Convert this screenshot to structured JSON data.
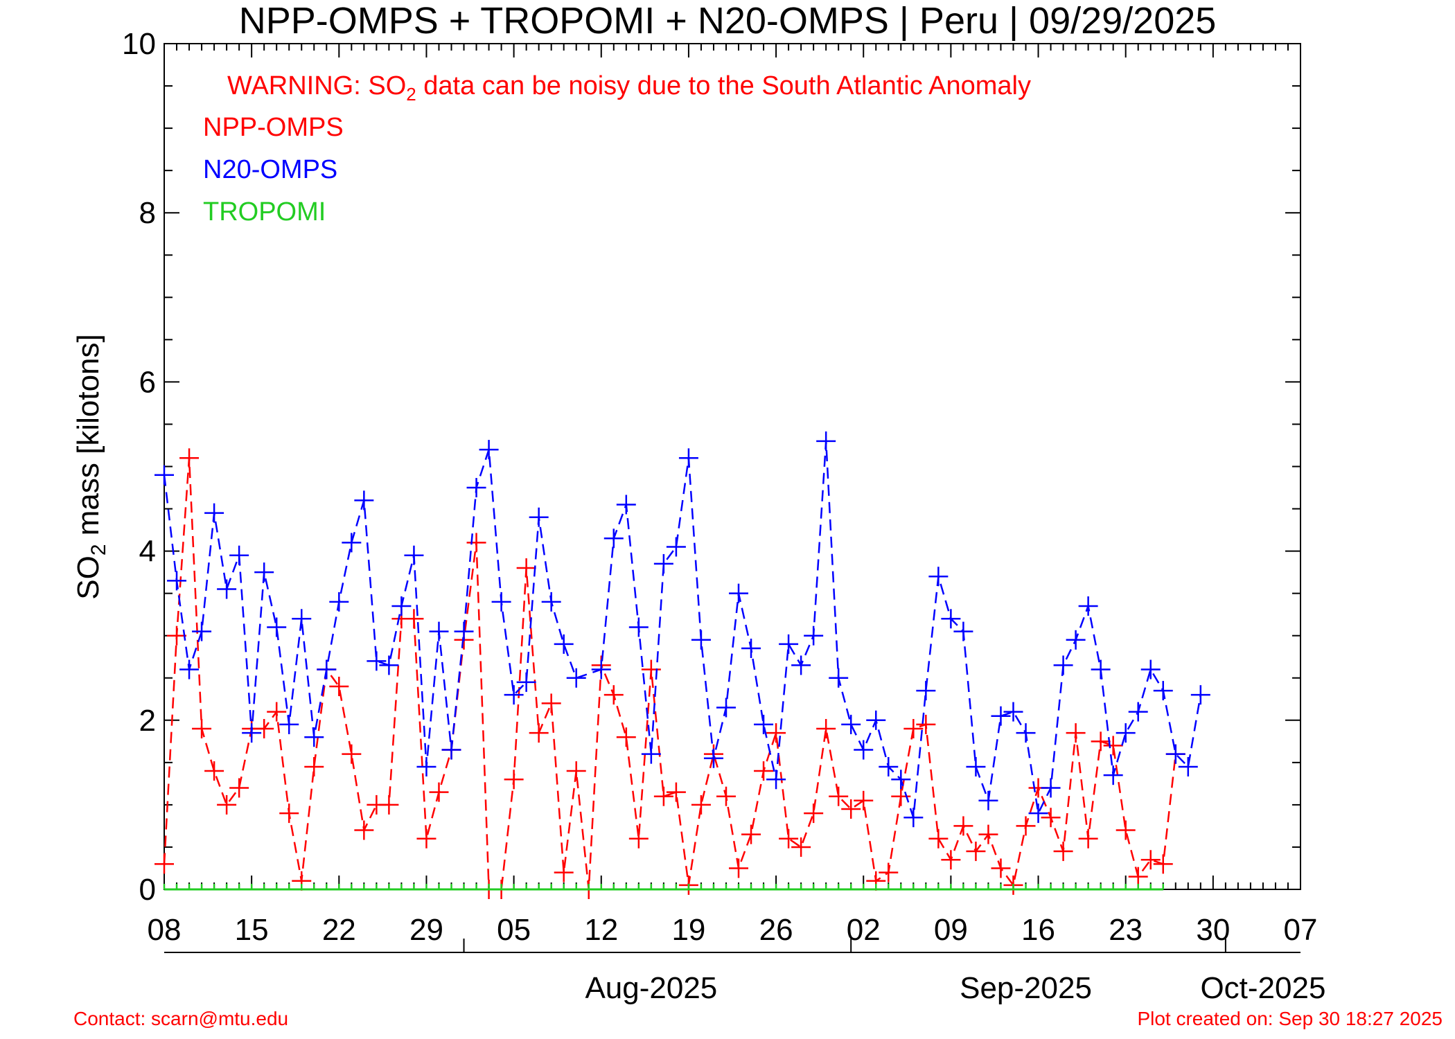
{
  "chart_data": {
    "type": "line",
    "title": "NPP-OMPS + TROPOMI + N20-OMPS | Peru | 09/29/2025",
    "warning": {
      "pre": "WARNING: SO",
      "sub": "2",
      "post": " data can be noisy due to the South Atlantic Anomaly"
    },
    "ylabel": {
      "pre": "SO",
      "sub": "2",
      "post": " mass [kilotons]"
    },
    "ylim": [
      0,
      10
    ],
    "yticks": [
      0,
      2,
      4,
      6,
      8,
      10
    ],
    "xrange": [
      "2025-07-08",
      "2025-10-07"
    ],
    "x_tick_labels": [
      "08",
      "15",
      "22",
      "29",
      "05",
      "12",
      "19",
      "26",
      "02",
      "09",
      "16",
      "23",
      "30",
      "07"
    ],
    "month_labels": [
      "Aug-2025",
      "Sep-2025",
      "Oct-2025"
    ],
    "series": [
      {
        "name": "NPP-OMPS",
        "color": "#ff0000",
        "start_date": "2025-07-08",
        "values": [
          0.3,
          3.0,
          5.1,
          1.9,
          1.4,
          1.0,
          1.2,
          1.9,
          1.9,
          2.1,
          0.9,
          0.1,
          1.45,
          2.6,
          2.4,
          1.6,
          0.7,
          1.0,
          1.0,
          3.2,
          3.2,
          0.6,
          1.15,
          1.65,
          2.95,
          4.1,
          0.0,
          0.0,
          1.3,
          3.8,
          1.85,
          2.2,
          0.2,
          1.4,
          0.0,
          2.65,
          2.3,
          1.8,
          0.6,
          2.6,
          1.1,
          1.15,
          0.05,
          1.0,
          1.6,
          1.1,
          0.25,
          0.65,
          1.4,
          1.85,
          0.6,
          0.5,
          0.9,
          1.9,
          1.1,
          0.95,
          1.05,
          0.1,
          0.2,
          1.1,
          1.9,
          1.95,
          0.6,
          0.35,
          0.75,
          0.45,
          0.65,
          0.25,
          0.05,
          0.75,
          1.2,
          0.85,
          0.45,
          1.85,
          0.6,
          1.75,
          1.7,
          0.7,
          0.15,
          0.35,
          0.3,
          1.6
        ]
      },
      {
        "name": "N20-OMPS",
        "color": "#0000ff",
        "start_date": "2025-07-08",
        "values": [
          4.9,
          3.65,
          2.6,
          3.05,
          4.45,
          3.55,
          3.95,
          1.85,
          3.75,
          3.1,
          1.95,
          3.2,
          1.8,
          2.6,
          3.4,
          4.1,
          4.6,
          2.7,
          2.65,
          3.35,
          3.95,
          1.45,
          3.05,
          1.65,
          3.05,
          4.75,
          5.2,
          3.4,
          2.3,
          2.45,
          4.4,
          3.4,
          2.9,
          2.5,
          null,
          2.6,
          4.15,
          4.55,
          3.1,
          1.6,
          3.85,
          4.05,
          5.1,
          2.95,
          1.55,
          2.15,
          3.5,
          2.85,
          1.95,
          1.3,
          2.9,
          2.65,
          3.0,
          5.3,
          2.5,
          1.95,
          1.65,
          2.0,
          1.45,
          1.3,
          0.85,
          2.35,
          3.7,
          3.2,
          3.05,
          1.45,
          1.05,
          2.05,
          2.1,
          1.85,
          0.9,
          1.2,
          2.65,
          2.95,
          3.35,
          2.6,
          1.35,
          1.85,
          2.1,
          2.6,
          2.35,
          1.6,
          1.45,
          2.3
        ]
      },
      {
        "name": "TROPOMI",
        "color": "#22cc22",
        "start_date": "2025-07-08",
        "values": [
          0,
          0,
          0,
          0,
          0,
          0,
          0,
          0,
          0,
          0,
          0,
          0,
          0,
          0,
          0,
          0,
          0,
          0,
          0,
          0,
          0,
          0,
          0,
          0,
          0,
          0,
          0,
          0,
          0,
          0,
          0,
          0,
          0,
          0,
          0,
          0,
          0,
          0,
          0,
          0,
          0,
          0,
          0,
          0,
          0,
          0,
          0,
          0,
          0,
          0,
          0,
          0,
          0,
          0,
          0,
          0,
          0,
          0,
          0,
          0,
          0,
          0,
          0,
          0,
          0,
          0,
          0,
          0,
          0,
          0,
          0,
          0,
          0,
          0,
          0,
          0,
          0,
          0,
          0,
          0,
          0
        ]
      }
    ],
    "grid": false,
    "legend_placement": "top-left"
  },
  "footer": {
    "contact": "Contact: scarn@mtu.edu",
    "created": "Plot created on: Sep 30 18:27 2025"
  }
}
